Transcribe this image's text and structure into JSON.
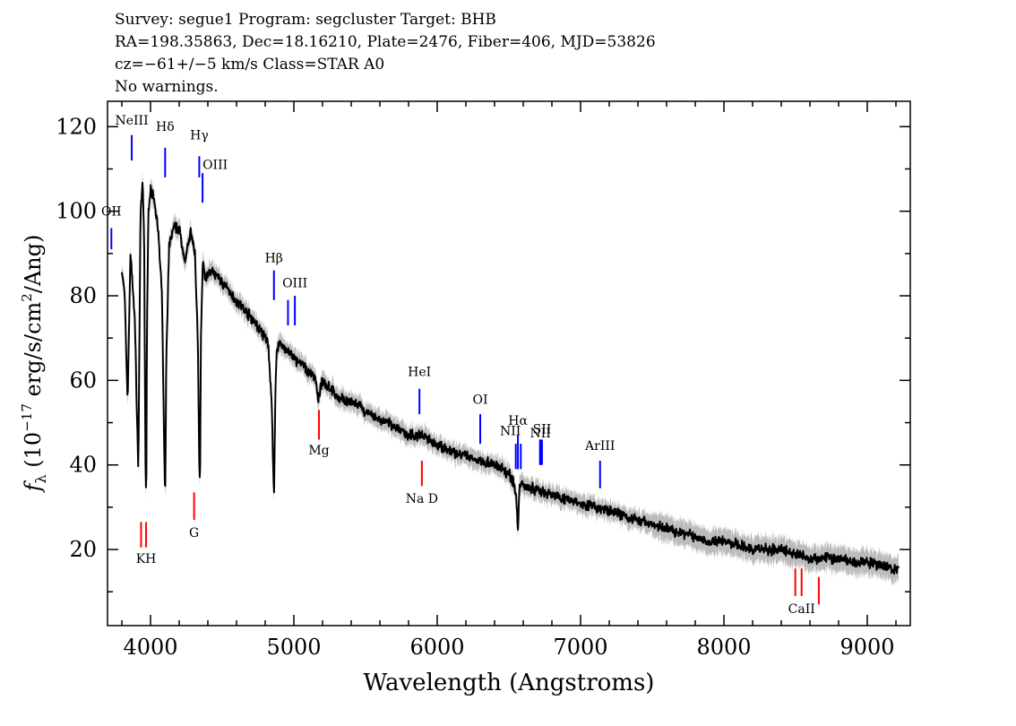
{
  "header": {
    "line1": "Survey: segue1 Program: segcluster Target: BHB",
    "line2": "RA=198.35863, Dec=18.16210, Plate=2476, Fiber=406, MJD=53826",
    "line3": "cz=−61+/−5 km/s Class=STAR A0",
    "line4": "No warnings."
  },
  "chart_data": {
    "type": "line",
    "xlabel": "Wavelength (Angstroms)",
    "ylabel": "f_λ (10^-17 erg/s/cm^2/Ang)",
    "xlim": [
      3700,
      9300
    ],
    "ylim": [
      2,
      126
    ],
    "x_ticks": [
      4000,
      5000,
      6000,
      7000,
      8000,
      9000
    ],
    "y_ticks": [
      20,
      40,
      60,
      80,
      100,
      120
    ],
    "colors": {
      "flux": "#000000",
      "error": "#bbbbbb",
      "emission": "#0000ff",
      "absorption": "#ff0000"
    },
    "series": [
      {
        "name": "flux",
        "x": [
          3800,
          3820,
          3840,
          3860,
          3880,
          3890,
          3900,
          3915,
          3930,
          3945,
          3955,
          3965,
          3970,
          3975,
          3985,
          4000,
          4020,
          4050,
          4080,
          4095,
          4102,
          4110,
          4130,
          4160,
          4200,
          4240,
          4280,
          4310,
          4330,
          4340,
          4345,
          4352,
          4365,
          4380,
          4420,
          4480,
          4550,
          4620,
          4700,
          4780,
          4820,
          4845,
          4855,
          4862,
          4870,
          4880,
          4895,
          4920,
          4960,
          5000,
          5050,
          5100,
          5150,
          5170,
          5185,
          5200,
          5260,
          5300,
          5380,
          5450,
          5520,
          5580,
          5650,
          5700,
          5800,
          5893,
          6000,
          6100,
          6200,
          6300,
          6400,
          6500,
          6530,
          6550,
          6558,
          6563,
          6568,
          6575,
          6590,
          6620,
          6700,
          6800,
          6900,
          7000,
          7100,
          7200,
          7300,
          7400,
          7500,
          7600,
          7700,
          7800,
          7900,
          8000,
          8100,
          8200,
          8300,
          8400,
          8500,
          8600,
          8700,
          8800,
          8900,
          9000,
          9100,
          9220
        ],
        "y": [
          86,
          80,
          55,
          90,
          80,
          75,
          60,
          38,
          100,
          106,
          95,
          40,
          30,
          70,
          100,
          105,
          104,
          97,
          80,
          45,
          31,
          65,
          92,
          96,
          96,
          88,
          95,
          90,
          70,
          40,
          34,
          70,
          88,
          84,
          86,
          84,
          81,
          78,
          75,
          71,
          69,
          55,
          40,
          33,
          55,
          67,
          69,
          68,
          67,
          65,
          64,
          62,
          61,
          55,
          58,
          60,
          58,
          56,
          55,
          54,
          52,
          51,
          50,
          49,
          47,
          47,
          45,
          43,
          42,
          41,
          40,
          38,
          36,
          33,
          28,
          24,
          29,
          35,
          36,
          35,
          34,
          33,
          32,
          31,
          30,
          29,
          28,
          27,
          26,
          25,
          24,
          23,
          22,
          22,
          21,
          20,
          20,
          20,
          19,
          18,
          18,
          18,
          17,
          17,
          16,
          15
        ]
      }
    ],
    "lines": [
      {
        "label": "OII",
        "wavelength": 3727,
        "color": "emission",
        "y1": 96,
        "y2": 91,
        "label_y": 99,
        "anchor": "middle"
      },
      {
        "label": "NeIII",
        "wavelength": 3869,
        "color": "emission",
        "y1": 118,
        "y2": 112,
        "label_y": 120.5,
        "anchor": "middle"
      },
      {
        "label": "Hδ",
        "wavelength": 4102,
        "color": "emission",
        "y1": 115,
        "y2": 108,
        "label_y": 119,
        "anchor": "middle"
      },
      {
        "label": "Hγ",
        "wavelength": 4340,
        "color": "emission",
        "y1": 113,
        "y2": 108,
        "label_y": 117,
        "anchor": "middle"
      },
      {
        "label": "OIII",
        "wavelength": 4363,
        "color": "emission",
        "y1": 109,
        "y2": 102,
        "label_y": 110,
        "anchor": "start"
      },
      {
        "label": "Hβ",
        "wavelength": 4861,
        "color": "emission",
        "y1": 86,
        "y2": 79,
        "label_y": 88,
        "anchor": "middle"
      },
      {
        "label": "OIII",
        "wavelength": 4959,
        "color": "emission",
        "y1": 79,
        "y2": 73,
        "label_y": 0,
        "anchor": "middle"
      },
      {
        "label": "OIII",
        "wavelength": 5007,
        "color": "emission",
        "y1": 80,
        "y2": 73,
        "label_y": 82,
        "anchor": "middle"
      },
      {
        "label": "HeI",
        "wavelength": 5876,
        "color": "emission",
        "y1": 58,
        "y2": 52,
        "label_y": 61,
        "anchor": "middle"
      },
      {
        "label": "OI",
        "wavelength": 6300,
        "color": "emission",
        "y1": 52,
        "y2": 45,
        "label_y": 54.5,
        "anchor": "middle"
      },
      {
        "label": "NII",
        "wavelength": 6548,
        "color": "emission",
        "y1": 45,
        "y2": 39,
        "label_y": 0,
        "anchor": "middle"
      },
      {
        "label": "Hα",
        "wavelength": 6563,
        "color": "emission",
        "y1": 47,
        "y2": 39,
        "label_y": 49.5,
        "anchor": "middle"
      },
      {
        "label": "NII",
        "wavelength": 6583,
        "color": "emission",
        "y1": 45,
        "y2": 39,
        "label_y": 47,
        "anchor": "end"
      },
      {
        "label": "NII",
        "wavelength": 6720,
        "color": "emission",
        "y1": 46,
        "y2": 40,
        "label_y": 46.5,
        "anchor": "middle"
      },
      {
        "label": "SII",
        "wavelength": 6717,
        "color": "emission",
        "y1": 46,
        "y2": 40,
        "label_y": 0,
        "anchor": "middle"
      },
      {
        "label": "SII",
        "wavelength": 6731,
        "color": "emission",
        "y1": 46,
        "y2": 40,
        "label_y": 47.5,
        "anchor": "middle"
      },
      {
        "label": "ArIII",
        "wavelength": 7136,
        "color": "emission",
        "y1": 41,
        "y2": 34.5,
        "label_y": 43.5,
        "anchor": "middle"
      },
      {
        "label": "K",
        "wavelength": 3934,
        "color": "absorption",
        "y1": 26.5,
        "y2": 20.5,
        "label_y": 0,
        "anchor": "middle"
      },
      {
        "label": "KH",
        "wavelength": 3969,
        "color": "absorption",
        "y1": 26.5,
        "y2": 20.5,
        "label_y": 16.8,
        "anchor": "middle"
      },
      {
        "label": "G",
        "wavelength": 4304,
        "color": "absorption",
        "y1": 33.5,
        "y2": 27,
        "label_y": 23,
        "anchor": "middle"
      },
      {
        "label": "Mg",
        "wavelength": 5175,
        "color": "absorption",
        "y1": 53,
        "y2": 46,
        "label_y": 42.5,
        "anchor": "middle"
      },
      {
        "label": "Na D",
        "wavelength": 5893,
        "color": "absorption",
        "y1": 41,
        "y2": 35,
        "label_y": 31,
        "anchor": "middle"
      },
      {
        "label": "CaII",
        "wavelength": 8498,
        "color": "absorption",
        "y1": 15.5,
        "y2": 9,
        "label_y": 0,
        "anchor": "middle"
      },
      {
        "label": "CaII",
        "wavelength": 8542,
        "color": "absorption",
        "y1": 15.5,
        "y2": 9,
        "label_y": 5,
        "anchor": "middle"
      },
      {
        "label": "CaII",
        "wavelength": 8662,
        "color": "absorption",
        "y1": 13.5,
        "y2": 7,
        "label_y": 0,
        "anchor": "middle"
      }
    ]
  }
}
